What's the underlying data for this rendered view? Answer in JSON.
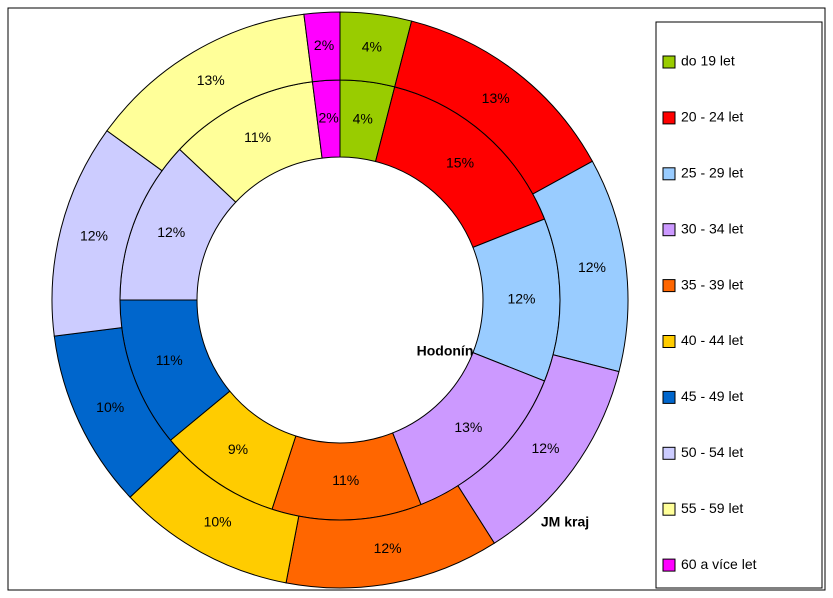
{
  "chart_data": {
    "type": "donut",
    "categories": [
      "do 19 let",
      "20 - 24 let",
      "25 - 29 let",
      "30 - 34 let",
      "35 - 39 let",
      "40 - 44 let",
      "45 - 49 let",
      "50 - 54 let",
      "55 - 59 let",
      "60 a více let"
    ],
    "colors": [
      "#99cc00",
      "#ff0000",
      "#99ccff",
      "#cc99ff",
      "#ff6600",
      "#ffcc00",
      "#0066cc",
      "#ccccff",
      "#ffff99",
      "#ff00ff"
    ],
    "series": [
      {
        "name": "Hodonín",
        "values": [
          4,
          15,
          12,
          13,
          11,
          9,
          11,
          12,
          11,
          2
        ],
        "value_labels": [
          "4%",
          "15%",
          "12%",
          "13%",
          "11%",
          "9%",
          "11%",
          "12%",
          "11%",
          "2%"
        ]
      },
      {
        "name": "JM kraj",
        "values": [
          4,
          13,
          12,
          12,
          12,
          10,
          10,
          12,
          13,
          2
        ],
        "value_labels": [
          "4%",
          "13%",
          "12%",
          "12%",
          "12%",
          "10%",
          "10%",
          "12%",
          "13%",
          "2%"
        ]
      }
    ]
  }
}
